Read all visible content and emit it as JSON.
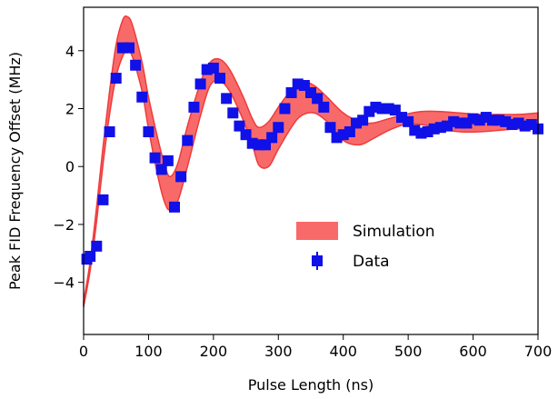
{
  "chart_data": {
    "type": "scatter",
    "xlabel": "Pulse Length (ns)",
    "ylabel": "Peak FID Frequency Offset (MHz)",
    "xlim": [
      0,
      700
    ],
    "ylim": [
      -5.8,
      5.5
    ],
    "x_ticks": [
      "0",
      "100",
      "200",
      "300",
      "400",
      "500",
      "600",
      "700"
    ],
    "y_ticks": [
      "−4",
      "−2",
      "0",
      "2",
      "4"
    ],
    "grid": false,
    "legend_position": "center-right",
    "colors": {
      "band_fill": "#f86a6a",
      "band_edge": "#ef3b3b",
      "points": "#1010e8"
    },
    "series": [
      {
        "name": "Simulation",
        "kind": "band",
        "x": [
          0,
          10,
          20,
          30,
          40,
          50,
          60,
          67,
          75,
          90,
          100,
          115,
          125,
          133,
          145,
          160,
          180,
          195,
          210,
          225,
          245,
          260,
          270,
          285,
          300,
          320,
          335,
          355,
          375,
          400,
          425,
          445,
          470,
          495,
          520,
          550,
          580,
          610,
          640,
          670,
          700
        ],
        "upper": [
          -4.65,
          -3.3,
          -1.4,
          0.7,
          2.6,
          4.2,
          5.05,
          5.18,
          4.9,
          3.6,
          2.4,
          0.9,
          0.05,
          -0.35,
          0.1,
          1.4,
          2.9,
          3.6,
          3.7,
          3.35,
          2.45,
          1.65,
          1.35,
          1.55,
          2.05,
          2.65,
          2.95,
          2.8,
          2.4,
          1.85,
          1.55,
          1.5,
          1.65,
          1.8,
          1.9,
          1.9,
          1.85,
          1.8,
          1.8,
          1.8,
          1.85
        ],
        "lower": [
          -4.85,
          -3.6,
          -1.9,
          0.1,
          1.8,
          3.1,
          3.8,
          4.0,
          3.8,
          2.6,
          1.3,
          -0.4,
          -1.25,
          -1.5,
          -1.2,
          0.0,
          1.75,
          2.8,
          2.95,
          2.6,
          1.65,
          0.75,
          0.05,
          0.0,
          0.6,
          1.35,
          1.75,
          1.85,
          1.55,
          0.9,
          0.75,
          0.95,
          1.25,
          1.45,
          1.45,
          1.3,
          1.2,
          1.2,
          1.25,
          1.3,
          1.3
        ]
      },
      {
        "name": "Data",
        "kind": "points",
        "x": [
          5,
          10,
          20,
          30,
          40,
          50,
          60,
          70,
          80,
          90,
          100,
          110,
          120,
          130,
          140,
          150,
          160,
          170,
          180,
          190,
          200,
          210,
          220,
          230,
          240,
          250,
          260,
          270,
          280,
          290,
          300,
          310,
          320,
          330,
          340,
          350,
          360,
          370,
          380,
          390,
          400,
          410,
          420,
          430,
          440,
          450,
          460,
          470,
          480,
          490,
          500,
          510,
          520,
          530,
          540,
          550,
          560,
          570,
          580,
          590,
          600,
          610,
          620,
          630,
          640,
          650,
          660,
          670,
          680,
          690,
          700
        ],
        "y": [
          -3.2,
          -3.1,
          -2.75,
          -1.15,
          1.2,
          3.05,
          4.1,
          4.1,
          3.5,
          2.4,
          1.2,
          0.3,
          -0.1,
          0.2,
          -1.4,
          -0.35,
          0.9,
          2.05,
          2.85,
          3.35,
          3.4,
          3.05,
          2.35,
          1.85,
          1.4,
          1.1,
          0.8,
          0.75,
          0.75,
          1.0,
          1.35,
          2.0,
          2.55,
          2.85,
          2.8,
          2.55,
          2.35,
          2.05,
          1.35,
          1.0,
          1.1,
          1.2,
          1.5,
          1.6,
          1.9,
          2.05,
          2.0,
          2.0,
          1.95,
          1.7,
          1.55,
          1.25,
          1.15,
          1.2,
          1.3,
          1.35,
          1.4,
          1.55,
          1.5,
          1.5,
          1.65,
          1.6,
          1.7,
          1.6,
          1.6,
          1.55,
          1.45,
          1.5,
          1.4,
          1.45,
          1.3
        ]
      }
    ]
  }
}
